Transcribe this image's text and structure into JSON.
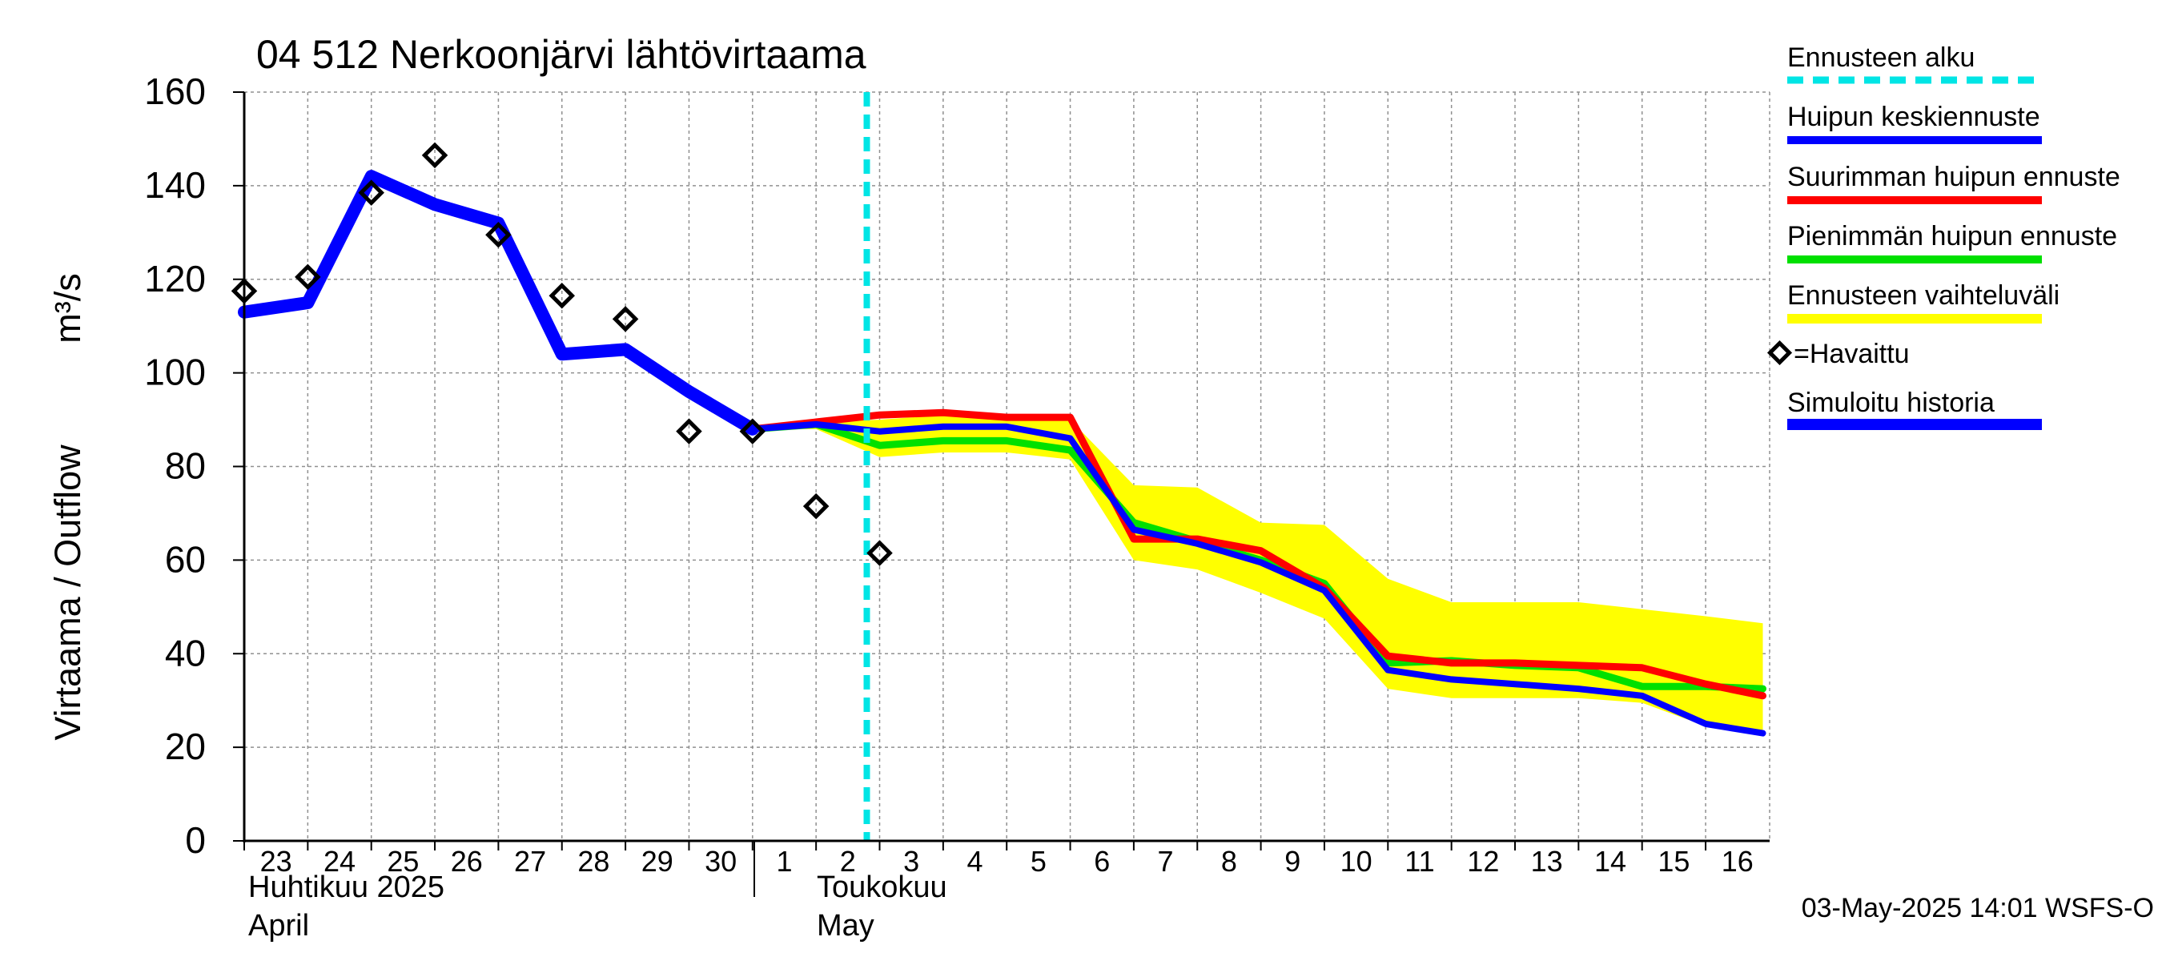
{
  "chart_data": {
    "type": "line",
    "title": "04 512 Nerkoonjärvi lähtövirtaama",
    "ylabel": "Virtaama / Outflow",
    "yunit": "m³/s",
    "ylim": [
      0,
      160
    ],
    "yticks": [
      0,
      20,
      40,
      60,
      80,
      100,
      120,
      140,
      160
    ],
    "xlim": [
      "2025-04-23",
      "2025-05-16"
    ],
    "xticks": [
      {
        "date": "2025-04-23",
        "label": "23"
      },
      {
        "date": "2025-04-24",
        "label": "24"
      },
      {
        "date": "2025-04-25",
        "label": "25"
      },
      {
        "date": "2025-04-26",
        "label": "26"
      },
      {
        "date": "2025-04-27",
        "label": "27"
      },
      {
        "date": "2025-04-28",
        "label": "28"
      },
      {
        "date": "2025-04-29",
        "label": "29"
      },
      {
        "date": "2025-04-30",
        "label": "30"
      },
      {
        "date": "2025-05-01",
        "label": "1"
      },
      {
        "date": "2025-05-02",
        "label": "2"
      },
      {
        "date": "2025-05-03",
        "label": "3"
      },
      {
        "date": "2025-05-04",
        "label": "4"
      },
      {
        "date": "2025-05-05",
        "label": "5"
      },
      {
        "date": "2025-05-06",
        "label": "6"
      },
      {
        "date": "2025-05-07",
        "label": "7"
      },
      {
        "date": "2025-05-08",
        "label": "8"
      },
      {
        "date": "2025-05-09",
        "label": "9"
      },
      {
        "date": "2025-05-10",
        "label": "10"
      },
      {
        "date": "2025-05-11",
        "label": "11"
      },
      {
        "date": "2025-05-12",
        "label": "12"
      },
      {
        "date": "2025-05-13",
        "label": "13"
      },
      {
        "date": "2025-05-14",
        "label": "14"
      },
      {
        "date": "2025-05-15",
        "label": "15"
      },
      {
        "date": "2025-05-16",
        "label": "16"
      }
    ],
    "month_labels": [
      {
        "fi": "Huhtikuu  2025",
        "en": "April",
        "date": "2025-04-23"
      },
      {
        "fi": "Toukokuu",
        "en": "May",
        "date": "2025-05-02"
      }
    ],
    "forecast_start": "2025-05-03",
    "footer": "03-May-2025 14:01 WSFS-O",
    "legend": {
      "forecast_start": "Ennusteen alku",
      "mean_peak": "Huipun keskiennuste",
      "max_peak": "Suurimman huipun ennuste",
      "min_peak": "Pienimmän huipun ennuste",
      "range": "Ennusteen vaihteluväli",
      "observed": "=Havaittu",
      "simulated": "Simuloitu historia"
    },
    "colors": {
      "forecast_start": "#00e5e5",
      "mean_peak": "#0000ff",
      "max_peak": "#ff0000",
      "min_peak": "#00e000",
      "range": "#ffff00",
      "simulated": "#0000ff",
      "grid": "#909090"
    },
    "series": {
      "simulated": {
        "x": [
          "2025-04-23",
          "2025-04-24",
          "2025-04-25",
          "2025-04-26",
          "2025-04-27",
          "2025-04-28",
          "2025-04-29",
          "2025-04-30",
          "2025-05-01"
        ],
        "y": [
          113,
          115,
          142,
          136,
          132,
          104,
          105,
          96,
          88
        ]
      },
      "observed": {
        "x": [
          "2025-04-23",
          "2025-04-24",
          "2025-04-25",
          "2025-04-26",
          "2025-04-27",
          "2025-04-28",
          "2025-04-29",
          "2025-04-30",
          "2025-05-01",
          "2025-05-02",
          "2025-05-03"
        ],
        "y": [
          117.5,
          120.5,
          138.5,
          146.5,
          129.5,
          116.5,
          111.5,
          87.5,
          87.5,
          71.5,
          61.5
        ]
      },
      "range_upper": {
        "x": [
          "2025-05-01",
          "2025-05-02",
          "2025-05-03",
          "2025-05-04",
          "2025-05-05",
          "2025-05-06",
          "2025-05-07",
          "2025-05-08",
          "2025-05-09",
          "2025-05-10",
          "2025-05-11",
          "2025-05-12",
          "2025-05-13",
          "2025-05-14",
          "2025-05-15",
          "2025-05-16",
          "2025-05-16.9"
        ],
        "y": [
          88,
          89.5,
          90,
          91,
          90.5,
          90,
          76,
          75.5,
          68,
          67.5,
          56,
          51,
          51,
          51,
          49.5,
          48,
          46.5
        ]
      },
      "range_lower": {
        "x": [
          "2025-05-01",
          "2025-05-02",
          "2025-05-03",
          "2025-05-04",
          "2025-05-05",
          "2025-05-06",
          "2025-05-07",
          "2025-05-08",
          "2025-05-09",
          "2025-05-10",
          "2025-05-11",
          "2025-05-12",
          "2025-05-13",
          "2025-05-14",
          "2025-05-15",
          "2025-05-16",
          "2025-05-16.9"
        ],
        "y": [
          88,
          88,
          82,
          83,
          83,
          81.5,
          60,
          58,
          53,
          47.5,
          32.5,
          30.5,
          30.5,
          30.5,
          29.5,
          24.5,
          23
        ]
      },
      "min_peak": {
        "x": [
          "2025-05-01",
          "2025-05-02",
          "2025-05-03",
          "2025-05-04",
          "2025-05-05",
          "2025-05-06",
          "2025-05-07",
          "2025-05-08",
          "2025-05-09",
          "2025-05-10",
          "2025-05-11",
          "2025-05-12",
          "2025-05-13",
          "2025-05-14",
          "2025-05-15",
          "2025-05-16",
          "2025-05-16.9"
        ],
        "y": [
          88,
          89,
          84.5,
          85.5,
          85.5,
          83.5,
          68,
          64,
          60,
          55,
          38,
          38.5,
          37.5,
          37,
          33,
          33,
          32.5
        ]
      },
      "max_peak": {
        "x": [
          "2025-05-01",
          "2025-05-02",
          "2025-05-03",
          "2025-05-04",
          "2025-05-05",
          "2025-05-06",
          "2025-05-07",
          "2025-05-08",
          "2025-05-09",
          "2025-05-10",
          "2025-05-11",
          "2025-05-12",
          "2025-05-13",
          "2025-05-14",
          "2025-05-15",
          "2025-05-16",
          "2025-05-16.9"
        ],
        "y": [
          88,
          89.5,
          91,
          91.5,
          90.5,
          90.5,
          64.5,
          64.5,
          62,
          54,
          39.5,
          38,
          38,
          37.5,
          37,
          33.5,
          31
        ]
      },
      "mean_peak": {
        "x": [
          "2025-05-01",
          "2025-05-02",
          "2025-05-03",
          "2025-05-04",
          "2025-05-05",
          "2025-05-06",
          "2025-05-07",
          "2025-05-08",
          "2025-05-09",
          "2025-05-10",
          "2025-05-11",
          "2025-05-12",
          "2025-05-13",
          "2025-05-14",
          "2025-05-15",
          "2025-05-16",
          "2025-05-16.9"
        ],
        "y": [
          88,
          89,
          87.5,
          88.5,
          88.5,
          86,
          66.5,
          63.5,
          59.5,
          53.5,
          36.5,
          34.5,
          33.5,
          32.5,
          31,
          25,
          23
        ]
      }
    }
  }
}
